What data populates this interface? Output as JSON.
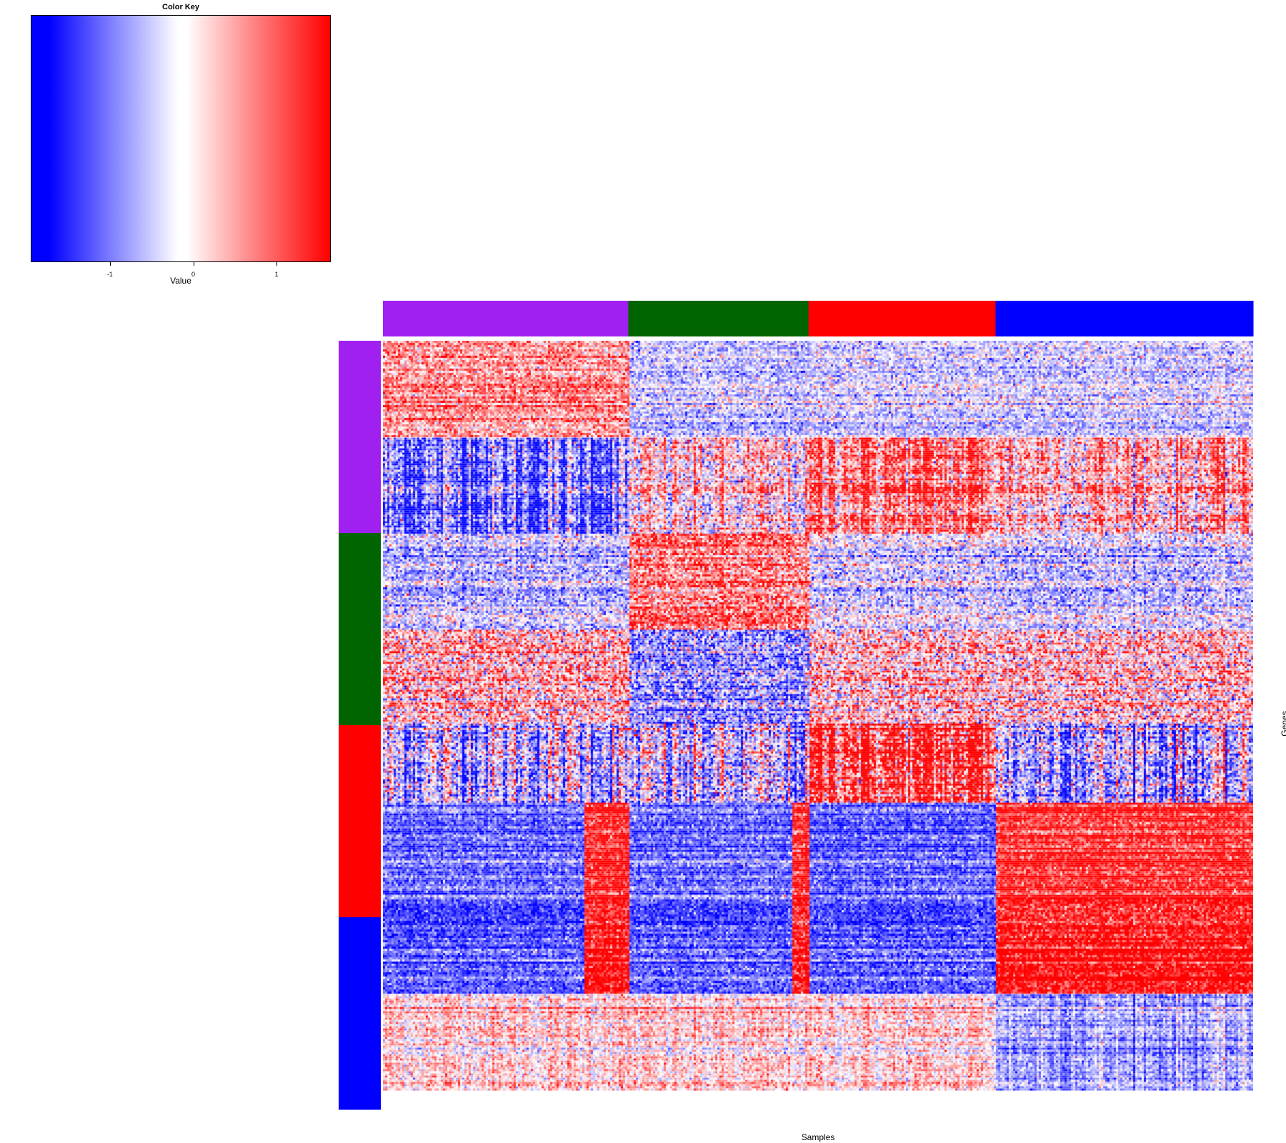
{
  "chart_data": {
    "type": "heatmap",
    "title": "",
    "xlabel": "Samples",
    "ylabel": "Genes",
    "color_key": {
      "title": "Color Key",
      "xlabel": "Value",
      "ticks": [
        -1,
        0,
        1
      ],
      "range": [
        -1.95,
        1.65
      ],
      "low_color": "#0000ff",
      "mid_color": "#ffffff",
      "high_color": "#ff0000"
    },
    "column_groups": [
      {
        "color": "#a020f0",
        "fraction": 0.282
      },
      {
        "color": "#006400",
        "fraction": 0.207
      },
      {
        "color": "#ff0000",
        "fraction": 0.215
      },
      {
        "color": "#0000ff",
        "fraction": 0.296
      }
    ],
    "row_groups": [
      {
        "color": "#a020f0",
        "fraction": 0.25
      },
      {
        "color": "#006400",
        "fraction": 0.25
      },
      {
        "color": "#ff0000",
        "fraction": 0.25
      },
      {
        "color": "#0000ff",
        "fraction": 0.25
      }
    ],
    "row_blocks": [
      {
        "fraction": 0.126,
        "mean": [
          0.7,
          -0.45,
          -0.35,
          -0.35
        ],
        "noise": 0.45,
        "colvar": 0.1
      },
      {
        "fraction": 0.125,
        "mean": [
          -1.1,
          0.15,
          0.95,
          0.5
        ],
        "noise": 0.65,
        "colvar": 0.85
      },
      {
        "fraction": 0.125,
        "mean": [
          -0.55,
          0.8,
          -0.35,
          -0.45
        ],
        "noise": 0.55,
        "colvar": 0.15
      },
      {
        "fraction": 0.122,
        "mean": [
          0.45,
          -0.95,
          0.3,
          0.3
        ],
        "noise": 0.8,
        "colvar": 0.2
      },
      {
        "fraction": 0.103,
        "mean": [
          -0.5,
          -0.6,
          1.25,
          -0.6
        ],
        "noise": 0.7,
        "colvar": 0.9
      },
      {
        "fraction": 0.123,
        "mean": [
          -1.2,
          -1.2,
          -1.3,
          1.4
        ],
        "noise": 0.45,
        "colvar": 0.1,
        "hi_subgroups": true
      },
      {
        "fraction": 0.126,
        "mean": [
          -1.3,
          -1.3,
          -1.3,
          1.5
        ],
        "noise": 0.4,
        "colvar": 0.1,
        "hi_subgroups": true
      },
      {
        "fraction": 0.125,
        "mean": [
          0.35,
          0.3,
          0.3,
          -0.7
        ],
        "noise": 0.4,
        "colvar": 0.4
      }
    ]
  }
}
